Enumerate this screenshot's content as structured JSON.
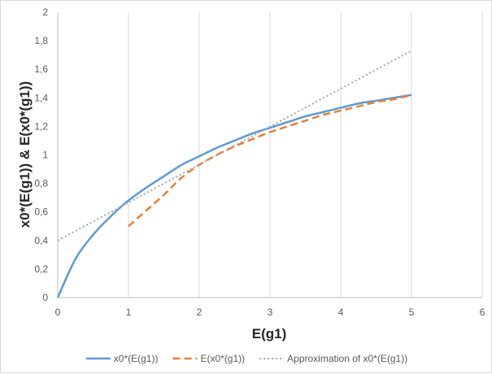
{
  "chart_data": {
    "type": "line",
    "xlabel": "E(g1)",
    "ylabel": "x0*(E(g1)) & E(x0*(g1))",
    "xlim": [
      0,
      6
    ],
    "ylim": [
      0,
      2
    ],
    "x_ticks": [
      "0",
      "1",
      "2",
      "3",
      "4",
      "5",
      "6"
    ],
    "y_ticks": [
      "0",
      "0,2",
      "0,4",
      "0,6",
      "0,8",
      "1",
      "1,2",
      "1,4",
      "1,6",
      "1,8",
      "2"
    ],
    "grid": "vertical",
    "legend_position": "bottom",
    "series": [
      {
        "name": "x0*(E(g1))",
        "style": "solid",
        "color": "#5b9bd5",
        "x": [
          0,
          0.25,
          0.5,
          0.75,
          1,
          1.25,
          1.5,
          1.75,
          2,
          2.25,
          2.5,
          2.75,
          3,
          3.25,
          3.5,
          3.75,
          4,
          4.25,
          4.5,
          4.75,
          5
        ],
        "y": [
          0,
          0.27,
          0.44,
          0.57,
          0.68,
          0.77,
          0.85,
          0.93,
          0.99,
          1.05,
          1.1,
          1.15,
          1.19,
          1.23,
          1.27,
          1.3,
          1.33,
          1.36,
          1.38,
          1.4,
          1.42
        ]
      },
      {
        "name": "E(x0*(g1))",
        "style": "dashed",
        "color": "#ed7d31",
        "x": [
          1,
          1.25,
          1.5,
          1.75,
          2,
          2.25,
          2.5,
          2.75,
          3,
          3.25,
          3.5,
          3.75,
          4,
          4.25,
          4.5,
          4.75,
          5
        ],
        "y": [
          0.5,
          0.61,
          0.72,
          0.84,
          0.93,
          1.0,
          1.06,
          1.11,
          1.16,
          1.2,
          1.24,
          1.28,
          1.31,
          1.34,
          1.37,
          1.39,
          1.42
        ]
      },
      {
        "name": "Approximation of x0*(E(g1))",
        "style": "dotted",
        "color": "#a5a5a5",
        "x": [
          0,
          5
        ],
        "y": [
          0.4,
          1.73
        ]
      }
    ]
  }
}
